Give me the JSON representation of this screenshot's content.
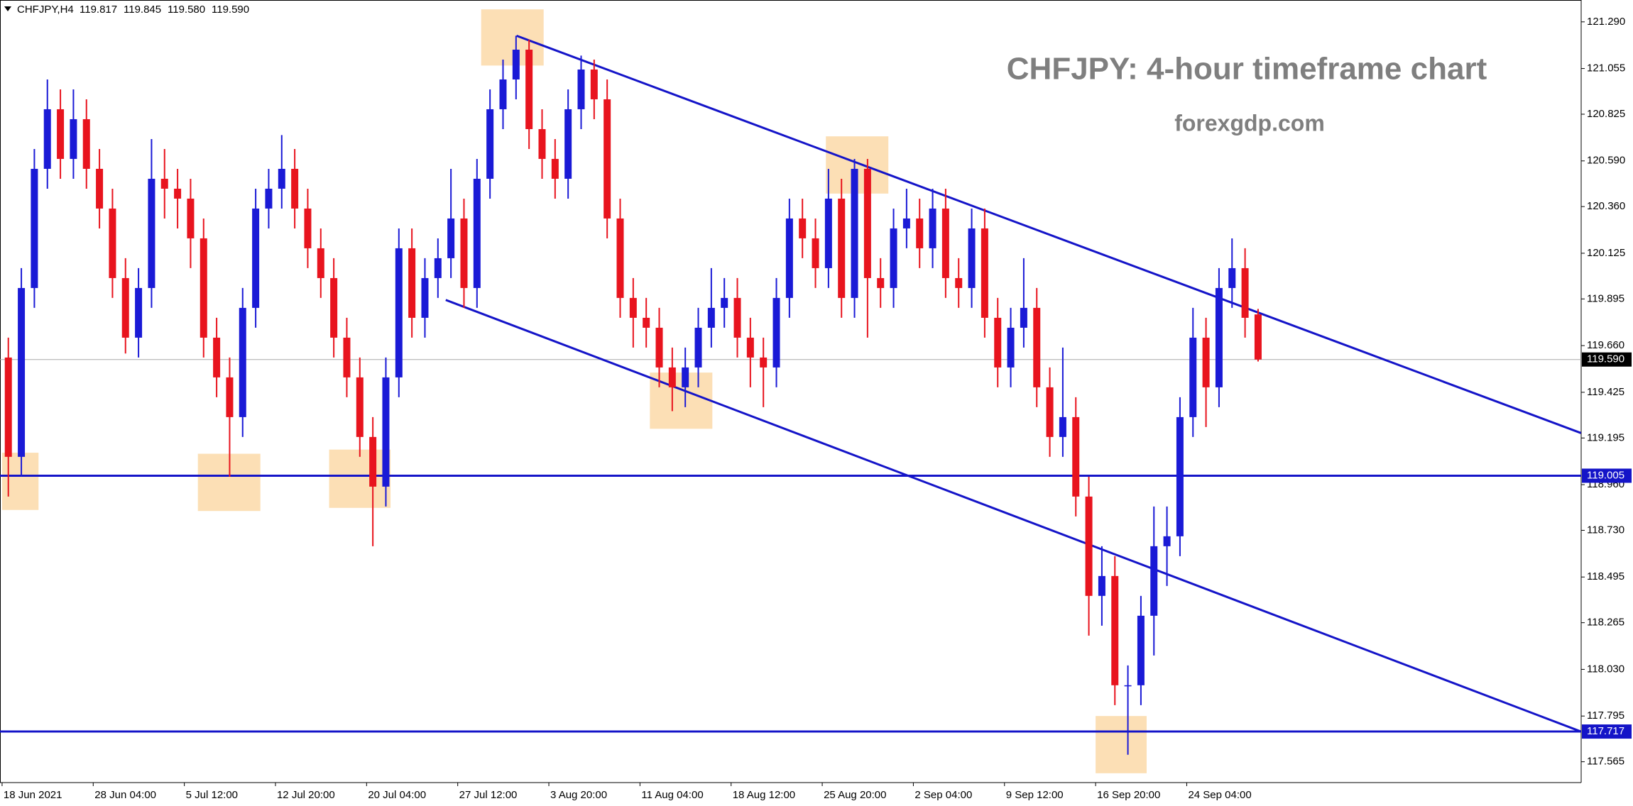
{
  "chart_data": {
    "type": "candlestick",
    "header": {
      "symbol": "CHFJPY,H4",
      "values": [
        119.817,
        119.845,
        119.58,
        119.59
      ],
      "value_labels": [
        "119.817",
        "119.845",
        "119.580",
        "119.590"
      ]
    },
    "title": "CHFJPY: 4-hour timeframe chart",
    "subtitle": "forexgdp.com",
    "up_color": "#1a1ad6",
    "down_color": "#e8141e",
    "level_color": "#1414c8",
    "categories": [
      "18 Jun 2021",
      null,
      null,
      null,
      null,
      null,
      null,
      "28 Jun 04:00",
      null,
      null,
      null,
      null,
      null,
      null,
      "5 Jul 12:00",
      null,
      null,
      null,
      null,
      null,
      null,
      "12 Jul 20:00",
      null,
      null,
      null,
      null,
      null,
      null,
      "20 Jul 04:00",
      null,
      null,
      null,
      null,
      null,
      null,
      "27 Jul 12:00",
      null,
      null,
      null,
      null,
      null,
      null,
      "3 Aug 20:00",
      null,
      null,
      null,
      null,
      null,
      null,
      "11 Aug 04:00",
      null,
      null,
      null,
      null,
      null,
      null,
      "18 Aug 12:00",
      null,
      null,
      null,
      null,
      null,
      null,
      "25 Aug 20:00",
      null,
      null,
      null,
      null,
      null,
      null,
      "2 Sep 04:00",
      null,
      null,
      null,
      null,
      null,
      null,
      "9 Sep 12:00",
      null,
      null,
      null,
      null,
      null,
      null,
      "16 Sep 20:00",
      null,
      null,
      null,
      null,
      null,
      null,
      "24 Sep 04:00",
      null,
      null,
      null,
      null,
      null
    ],
    "open": [
      119.6,
      119.1,
      119.95,
      120.55,
      120.85,
      120.6,
      120.8,
      120.55,
      120.35,
      120.0,
      119.7,
      119.95,
      120.5,
      120.45,
      120.4,
      120.2,
      119.7,
      119.5,
      119.3,
      119.85,
      120.35,
      120.45,
      120.55,
      120.35,
      120.15,
      120.0,
      119.7,
      119.5,
      119.2,
      118.95,
      119.5,
      120.15,
      119.8,
      120.0,
      120.1,
      120.3,
      119.95,
      120.5,
      120.85,
      121.0,
      121.15,
      120.75,
      120.6,
      120.5,
      120.85,
      121.05,
      120.9,
      120.3,
      119.9,
      119.8,
      119.75,
      119.55,
      119.45,
      119.55,
      119.75,
      119.85,
      119.9,
      119.7,
      119.6,
      119.55,
      119.9,
      120.3,
      120.2,
      120.05,
      120.4,
      119.9,
      120.55,
      120.0,
      119.95,
      120.25,
      120.3,
      120.15,
      120.35,
      120.0,
      119.95,
      120.25,
      119.8,
      119.55,
      119.75,
      119.85,
      119.45,
      119.2,
      119.3,
      118.9,
      118.4,
      118.5,
      117.95,
      117.95,
      118.3,
      118.65,
      118.7,
      119.3,
      119.7,
      119.45,
      119.95,
      120.05,
      119.817
    ],
    "high": [
      119.7,
      120.05,
      120.65,
      121.0,
      120.95,
      120.95,
      120.9,
      120.65,
      120.45,
      120.1,
      120.05,
      120.7,
      120.65,
      120.55,
      120.5,
      120.3,
      119.8,
      119.6,
      119.95,
      120.45,
      120.55,
      120.72,
      120.65,
      120.45,
      120.25,
      120.1,
      119.8,
      119.6,
      119.3,
      119.6,
      120.25,
      120.25,
      120.1,
      120.2,
      120.55,
      120.4,
      120.6,
      120.95,
      121.1,
      121.22,
      121.2,
      120.85,
      120.7,
      120.95,
      121.12,
      121.1,
      121.0,
      120.4,
      120.0,
      119.9,
      119.85,
      119.65,
      119.65,
      119.85,
      120.05,
      120.0,
      120.0,
      119.8,
      119.7,
      120.0,
      120.4,
      120.4,
      120.3,
      120.55,
      120.5,
      120.6,
      120.6,
      120.1,
      120.35,
      120.45,
      120.4,
      120.45,
      120.45,
      120.1,
      120.35,
      120.35,
      119.9,
      119.85,
      120.1,
      119.95,
      119.55,
      119.65,
      119.4,
      119.0,
      118.65,
      118.6,
      118.05,
      118.4,
      118.85,
      118.85,
      119.4,
      119.85,
      119.8,
      120.05,
      120.2,
      120.15,
      119.845
    ],
    "low": [
      118.9,
      119.0,
      119.85,
      120.45,
      120.5,
      120.5,
      120.45,
      120.25,
      119.9,
      119.62,
      119.6,
      119.85,
      120.3,
      120.25,
      120.05,
      119.6,
      119.4,
      119.0,
      119.2,
      119.75,
      120.25,
      120.35,
      120.25,
      120.05,
      119.9,
      119.6,
      119.4,
      119.1,
      118.65,
      118.85,
      119.4,
      119.7,
      119.7,
      119.9,
      120.0,
      119.85,
      119.85,
      120.4,
      120.75,
      120.9,
      120.65,
      120.5,
      120.4,
      120.4,
      120.75,
      120.8,
      120.2,
      119.8,
      119.65,
      119.65,
      119.45,
      119.33,
      119.35,
      119.45,
      119.65,
      119.75,
      119.6,
      119.45,
      119.35,
      119.45,
      119.8,
      120.1,
      119.95,
      119.95,
      119.8,
      119.8,
      119.7,
      119.85,
      119.85,
      120.15,
      120.05,
      120.05,
      119.9,
      119.85,
      119.85,
      119.7,
      119.45,
      119.45,
      119.65,
      119.35,
      119.1,
      119.1,
      118.8,
      118.2,
      118.25,
      117.85,
      117.6,
      117.85,
      118.1,
      118.45,
      118.6,
      119.2,
      119.25,
      119.35,
      119.85,
      119.7,
      119.58
    ],
    "close": [
      119.1,
      119.95,
      120.55,
      120.85,
      120.6,
      120.8,
      120.55,
      120.35,
      120.0,
      119.7,
      119.95,
      120.5,
      120.45,
      120.4,
      120.2,
      119.7,
      119.5,
      119.3,
      119.85,
      120.35,
      120.45,
      120.55,
      120.35,
      120.15,
      120.0,
      119.7,
      119.5,
      119.2,
      118.95,
      119.5,
      120.15,
      119.8,
      120.0,
      120.1,
      120.3,
      119.95,
      120.5,
      120.85,
      121.0,
      121.15,
      120.75,
      120.6,
      120.5,
      120.85,
      121.05,
      120.9,
      120.3,
      119.9,
      119.8,
      119.75,
      119.55,
      119.45,
      119.55,
      119.75,
      119.85,
      119.9,
      119.7,
      119.6,
      119.55,
      119.9,
      120.3,
      120.2,
      120.05,
      120.4,
      119.9,
      120.55,
      120.0,
      119.95,
      120.25,
      120.3,
      120.15,
      120.35,
      120.0,
      119.95,
      120.25,
      119.8,
      119.55,
      119.75,
      119.85,
      119.45,
      119.2,
      119.3,
      118.9,
      118.4,
      118.5,
      117.95,
      117.95,
      118.3,
      118.65,
      118.7,
      119.3,
      119.7,
      119.45,
      119.95,
      120.05,
      119.8,
      119.59
    ],
    "ylim": [
      117.46,
      121.4
    ],
    "yticks": [
      {
        "value": 121.29,
        "label": "121.290"
      },
      121.055,
      120.825,
      {
        "value": 120.59,
        "label": "120.590"
      },
      {
        "value": 120.36,
        "label": "120.360"
      },
      120.125,
      119.895,
      {
        "value": 119.66,
        "label": "119.660"
      },
      119.425,
      119.195,
      {
        "value": 118.96,
        "label": "118.960"
      },
      {
        "value": 118.73,
        "label": "118.730"
      },
      118.495,
      118.265,
      {
        "value": 118.03,
        "label": "118.030"
      },
      117.795,
      117.565
    ],
    "last_price": {
      "value": 119.59,
      "label": "119.590"
    },
    "levels": [
      119.005,
      117.717
    ],
    "trendlines": [
      {
        "from": 121.22,
        "to": 119.22
      },
      {
        "from": 119.89,
        "to": 117.717
      }
    ]
  }
}
